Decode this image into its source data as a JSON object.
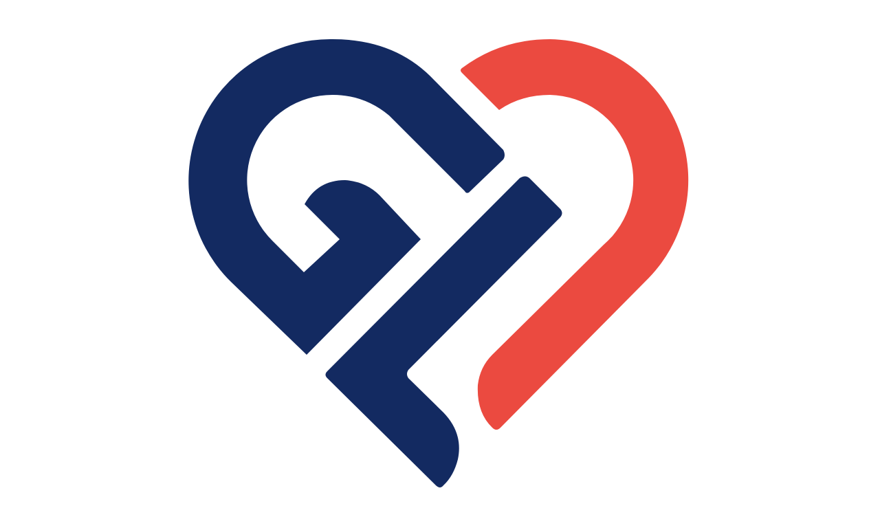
{
  "logo": {
    "name": "heart-monogram-logo",
    "colors": {
      "navy": "#132A61",
      "red": "#EB4A40",
      "background": "#FFFFFF"
    }
  }
}
